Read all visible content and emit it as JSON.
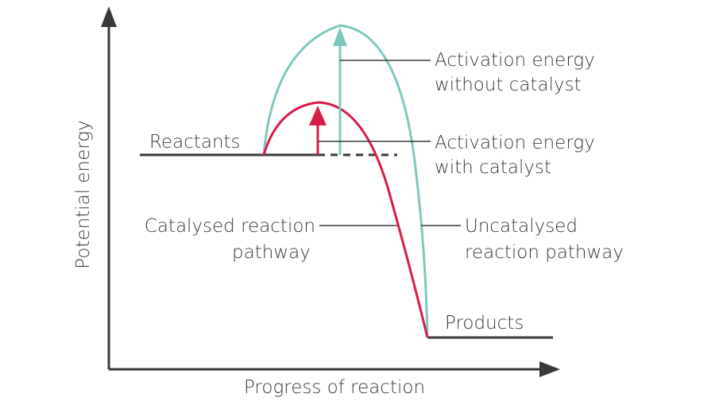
{
  "axes": {
    "y_label": "Potential energy",
    "x_label": "Progress of reaction"
  },
  "labels": {
    "reactants": "Reactants",
    "products": "Products",
    "ea_without_line1": "Activation energy",
    "ea_without_line2": "without catalyst",
    "ea_with_line1": "Activation energy",
    "ea_with_line2": "with catalyst",
    "catalysed_line1": "Catalysed reaction",
    "catalysed_line2": "pathway",
    "uncatalysed_line1": "Uncatalysed",
    "uncatalysed_line2": "reaction pathway"
  },
  "colors": {
    "axis": "#3a3a3a",
    "uncatalysed": "#7cc9bf",
    "catalysed": "#d81b47",
    "text": "#3a3a3a"
  },
  "icons": {
    "uncatalysed_arrow": "arrow-up-icon",
    "catalysed_arrow": "arrow-up-icon"
  }
}
